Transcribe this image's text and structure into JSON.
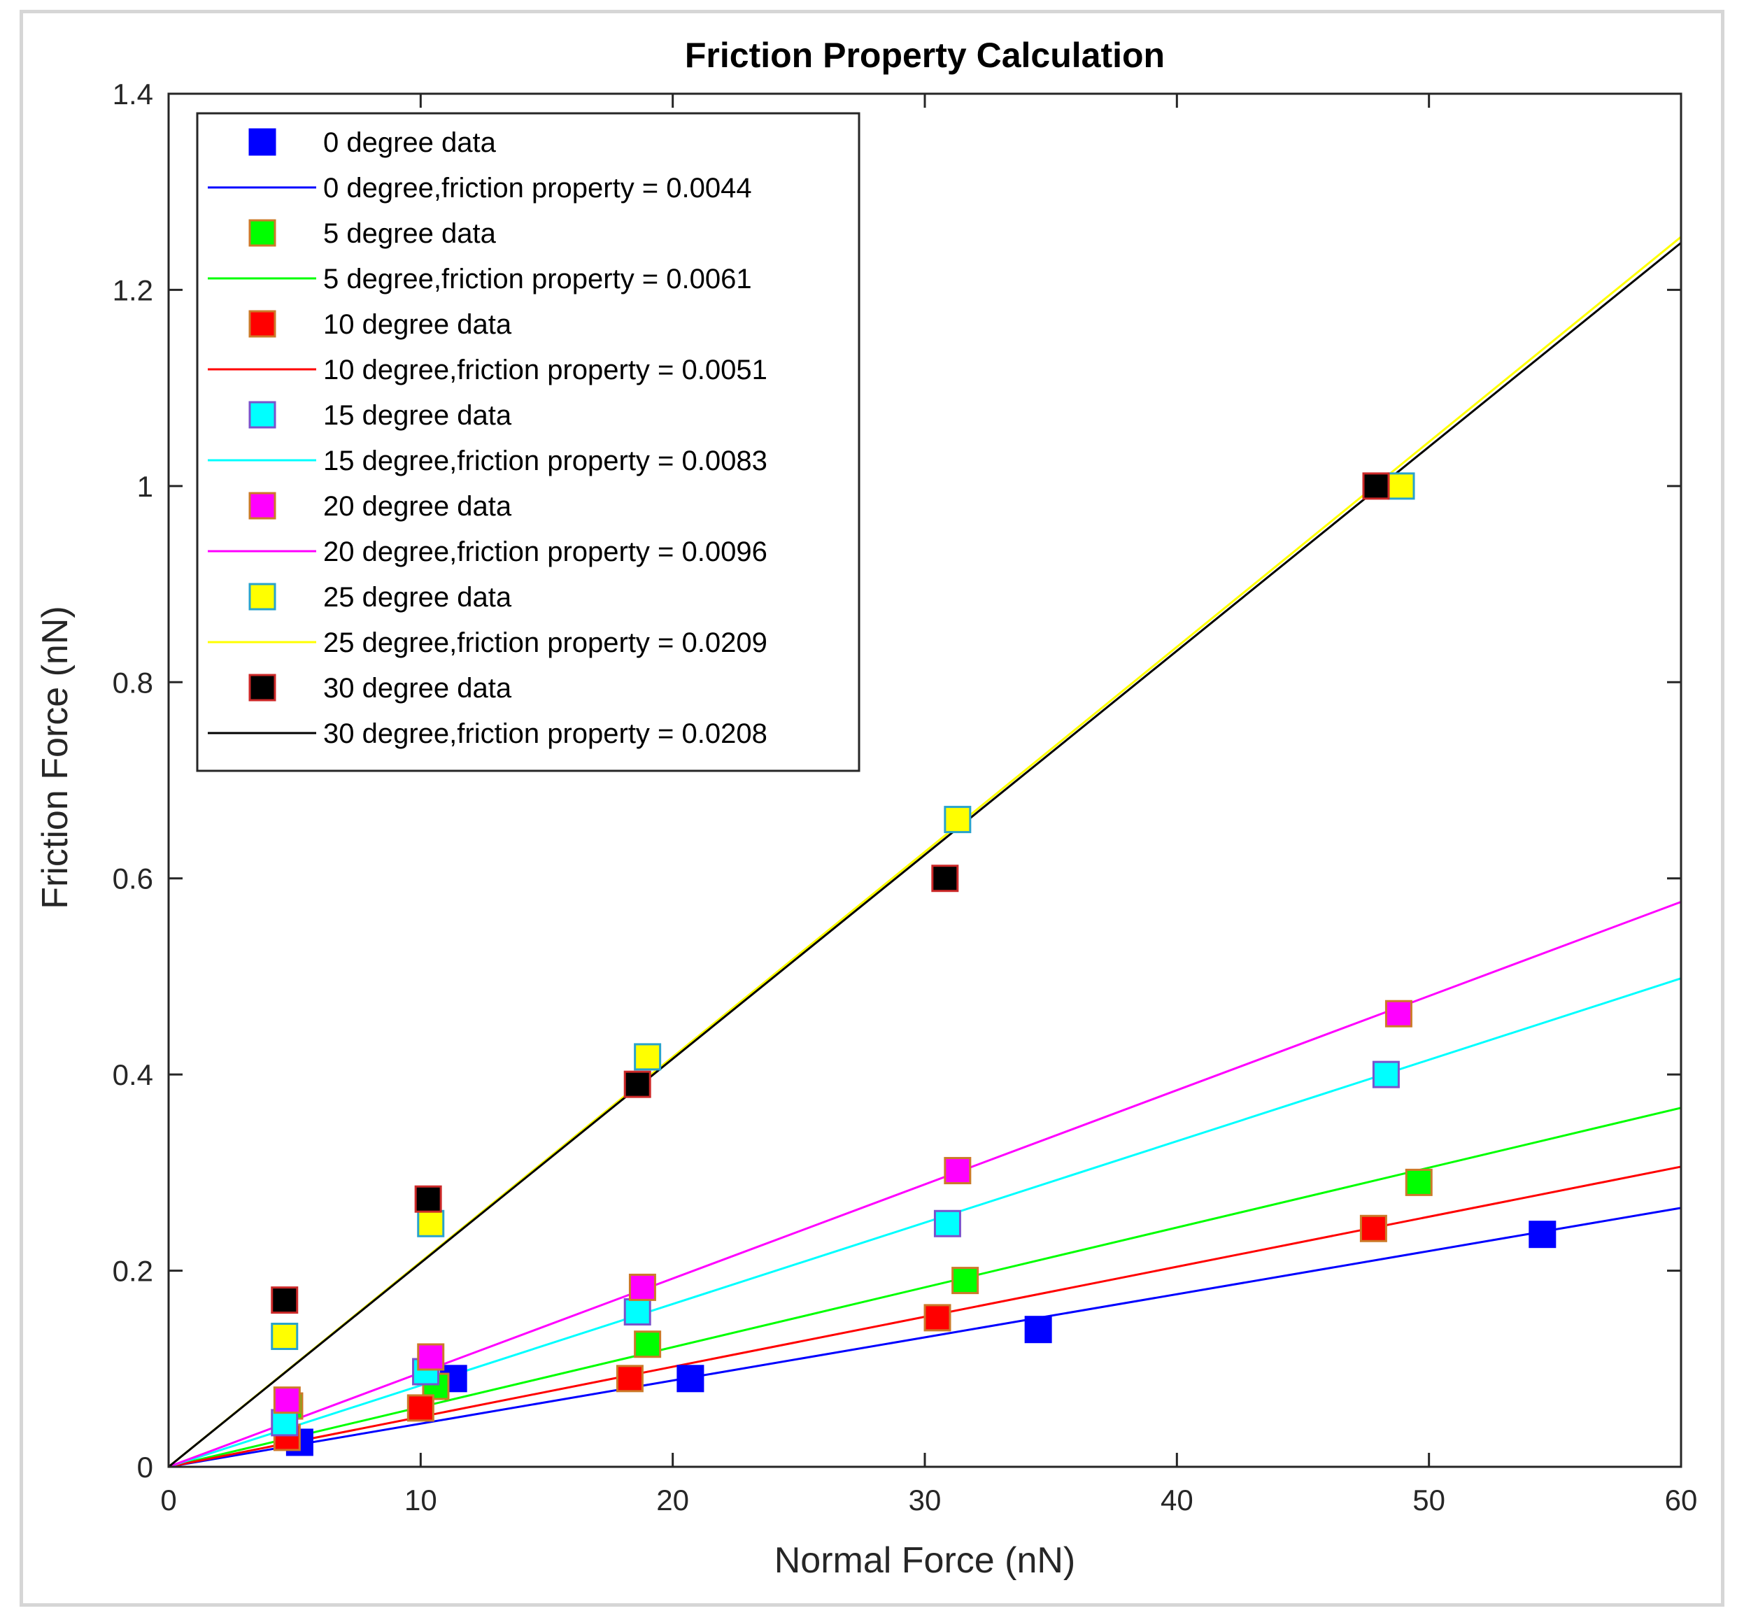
{
  "chart_data": {
    "type": "scatter",
    "title": "Friction Property Calculation",
    "xlabel": "Normal Force (nN)",
    "ylabel": "Friction Force (nN)",
    "xlim": [
      0,
      60
    ],
    "ylim": [
      0,
      1.4
    ],
    "xticks": [
      0,
      10,
      20,
      30,
      40,
      50,
      60
    ],
    "yticks": [
      0,
      0.2,
      0.4,
      0.6,
      0.8,
      1,
      1.2,
      1.4
    ],
    "xtick_labels": [
      "0",
      "10",
      "20",
      "30",
      "40",
      "50",
      "60"
    ],
    "ytick_labels": [
      "0",
      "0.2",
      "0.4",
      "0.6",
      "0.8",
      "1",
      "1.2",
      "1.4"
    ],
    "grid": false,
    "legend_position": "top-left",
    "series": [
      {
        "id": "0deg",
        "data_label": "0 degree data",
        "fit_label": "0 degree,friction property = 0.0044",
        "color": "#0000ff",
        "marker_edge": "#0000ff",
        "slope": 0.0044,
        "x": [
          5.2,
          11.3,
          20.7,
          34.5,
          54.5
        ],
        "y": [
          0.025,
          0.09,
          0.09,
          0.14,
          0.237
        ]
      },
      {
        "id": "5deg",
        "data_label": "5 degree data",
        "fit_label": "5 degree,friction property = 0.0061",
        "color": "#00ff00",
        "marker_edge": "#cc7a29",
        "slope": 0.0061,
        "x": [
          4.8,
          10.6,
          19.0,
          31.6,
          49.6
        ],
        "y": [
          0.062,
          0.082,
          0.125,
          0.19,
          0.29
        ]
      },
      {
        "id": "10deg",
        "data_label": "10 degree data",
        "fit_label": "10 degree,friction property = 0.0051",
        "color": "#ff0000",
        "marker_edge": "#cc7a29",
        "slope": 0.0051,
        "x": [
          4.7,
          10.0,
          18.3,
          30.5,
          47.8
        ],
        "y": [
          0.03,
          0.06,
          0.09,
          0.152,
          0.243
        ]
      },
      {
        "id": "15deg",
        "data_label": "15 degree data",
        "fit_label": "15 degree,friction property = 0.0083",
        "color": "#00ffff",
        "marker_edge": "#7a52cc",
        "slope": 0.0083,
        "x": [
          4.6,
          10.2,
          18.6,
          30.9,
          48.3
        ],
        "y": [
          0.045,
          0.097,
          0.158,
          0.248,
          0.4
        ]
      },
      {
        "id": "20deg",
        "data_label": "20 degree data",
        "fit_label": "20 degree,friction property = 0.0096",
        "color": "#ff00ff",
        "marker_edge": "#cc7a29",
        "slope": 0.0096,
        "x": [
          4.7,
          10.4,
          18.8,
          31.3,
          48.8
        ],
        "y": [
          0.068,
          0.112,
          0.183,
          0.302,
          0.462
        ]
      },
      {
        "id": "25deg",
        "data_label": "25 degree data",
        "fit_label": "25 degree,friction property = 0.0209",
        "color": "#ffff00",
        "marker_edge": "#29a3cc",
        "slope": 0.0209,
        "x": [
          4.6,
          10.4,
          19.0,
          31.3,
          48.9
        ],
        "y": [
          0.133,
          0.248,
          0.418,
          0.66,
          1.0
        ]
      },
      {
        "id": "30deg",
        "data_label": "30 degree data",
        "fit_label": "30 degree,friction property = 0.0208",
        "color": "#000000",
        "marker_edge": "#cc2929",
        "slope": 0.0208,
        "x": [
          4.6,
          10.3,
          18.6,
          30.8,
          47.9
        ],
        "y": [
          0.17,
          0.273,
          0.39,
          0.6,
          1.0
        ]
      }
    ]
  }
}
